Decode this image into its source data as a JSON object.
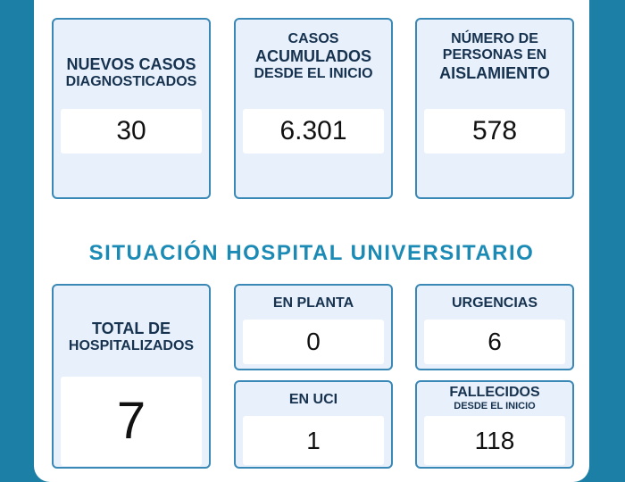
{
  "top": {
    "nuevos": {
      "line1": "NUEVOS CASOS",
      "line2": "DIAGNOSTICADOS",
      "value": "30"
    },
    "acumulados": {
      "line1": "CASOS",
      "line2": "ACUMULADOS",
      "line3": "DESDE EL INICIO",
      "value": "6.301"
    },
    "aislamiento": {
      "line1": "NÚMERO DE",
      "line2": "PERSONAS EN",
      "line3": "AISLAMIENTO",
      "value": "578"
    }
  },
  "section_title": "SITUACIÓN HOSPITAL UNIVERSITARIO",
  "hospital": {
    "total": {
      "line1": "TOTAL DE",
      "line2": "HOSPITALIZADOS",
      "value": "7"
    },
    "planta": {
      "label": "EN PLANTA",
      "value": "0"
    },
    "urgencias": {
      "label": "URGENCIAS",
      "value": "6"
    },
    "uci": {
      "label": "EN UCI",
      "value": "1"
    },
    "fallecidos": {
      "line1": "FALLECIDOS",
      "line2": "DESDE EL INICIO",
      "value": "118"
    }
  },
  "colors": {
    "background": "#1c7fa6",
    "card_bg": "#e7f0fb",
    "card_border": "#3a88b6",
    "title": "#1b8bb6"
  }
}
